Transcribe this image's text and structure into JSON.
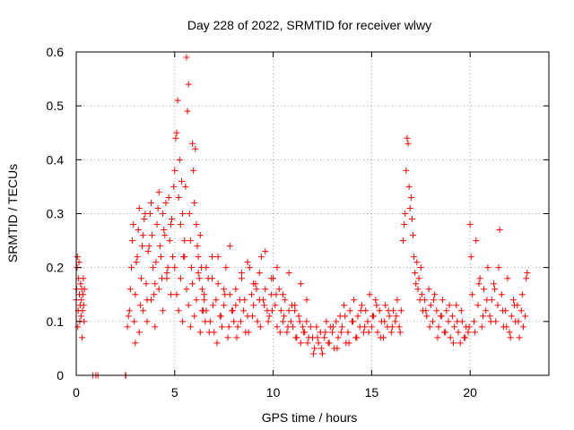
{
  "chart_data": {
    "type": "scatter",
    "title": "Day 228 of 2022, SRMTID for receiver wlwy",
    "xlabel": "GPS time / hours",
    "ylabel": "SRMTID / TECUs",
    "xlim": [
      0,
      24
    ],
    "ylim": [
      0,
      0.6
    ],
    "xticks": [
      0,
      5,
      10,
      15,
      20
    ],
    "xtick_labels": [
      "0",
      "5",
      "10",
      "15",
      "20"
    ],
    "yticks": [
      0,
      0.1,
      0.2,
      0.3,
      0.4,
      0.5,
      0.6
    ],
    "ytick_labels": [
      "0",
      "0.1",
      "0.2",
      "0.3",
      "0.4",
      "0.5",
      "0.6"
    ],
    "grid": true,
    "marker": "+",
    "color": "#ff0000",
    "series": [
      {
        "name": "SRMTID",
        "x": [
          0.0,
          0.02,
          0.04,
          0.06,
          0.08,
          0.1,
          0.12,
          0.14,
          0.16,
          0.18,
          0.2,
          0.22,
          0.24,
          0.26,
          0.28,
          0.3,
          0.32,
          0.34,
          0.36,
          0.38,
          0.4,
          0.42,
          0.85,
          1.0,
          1.1,
          2.5,
          2.52,
          2.6,
          2.7,
          2.8,
          2.9,
          3.0,
          3.1,
          3.2,
          3.3,
          3.4,
          3.5,
          3.6,
          3.7,
          3.8,
          3.9,
          4.0,
          4.1,
          4.2,
          4.3,
          4.4,
          4.5,
          4.6,
          4.7,
          4.8,
          4.9,
          2.65,
          2.75,
          2.85,
          2.95,
          3.05,
          3.15,
          3.25,
          3.35,
          3.45,
          3.55,
          3.65,
          3.75,
          3.85,
          3.95,
          4.05,
          4.15,
          4.25,
          4.35,
          4.45,
          4.55,
          4.65,
          4.75,
          4.85,
          4.95,
          3.0,
          3.2,
          3.4,
          3.6,
          3.8,
          4.0,
          4.2,
          4.4,
          4.6,
          4.8,
          5.0,
          5.05,
          5.1,
          5.15,
          5.2,
          5.25,
          5.3,
          5.35,
          5.4,
          5.45,
          5.5,
          5.55,
          5.6,
          5.65,
          5.7,
          5.75,
          5.8,
          5.85,
          5.9,
          5.95,
          6.0,
          6.05,
          6.1,
          6.15,
          6.2,
          6.25,
          6.3,
          6.35,
          6.4,
          6.45,
          6.5,
          5.0,
          5.1,
          5.2,
          5.3,
          5.4,
          5.5,
          5.6,
          5.7,
          5.8,
          5.9,
          6.0,
          6.1,
          6.2,
          6.3,
          6.4,
          6.5,
          6.6,
          6.7,
          6.8,
          6.9,
          7.0,
          7.1,
          7.2,
          7.3,
          7.4,
          7.5,
          7.6,
          7.7,
          7.8,
          7.9,
          8.0,
          8.1,
          8.2,
          8.3,
          8.4,
          8.5,
          8.6,
          8.7,
          8.8,
          8.9,
          9.0,
          9.1,
          9.2,
          9.3,
          9.4,
          9.5,
          9.6,
          9.7,
          9.8,
          9.9,
          10.0,
          10.1,
          10.2,
          10.3,
          10.4,
          10.5,
          10.6,
          10.7,
          10.8,
          10.9,
          11.0,
          11.1,
          11.2,
          11.3,
          11.4,
          11.5,
          11.6,
          11.7,
          11.8,
          11.9,
          6.55,
          6.75,
          6.95,
          7.15,
          7.35,
          7.55,
          7.75,
          7.95,
          8.15,
          8.35,
          8.55,
          8.75,
          8.95,
          9.15,
          9.35,
          9.55,
          9.75,
          9.95,
          10.15,
          10.35,
          10.55,
          10.75,
          10.95,
          11.15,
          11.35,
          11.55,
          11.75,
          6.6,
          6.9,
          7.2,
          7.5,
          7.8,
          8.1,
          8.4,
          8.7,
          9.0,
          9.3,
          9.6,
          9.9,
          10.2,
          10.5,
          10.8,
          11.1,
          11.4,
          11.7,
          12.0,
          12.1,
          12.2,
          12.3,
          12.4,
          12.5,
          12.6,
          12.7,
          12.8,
          12.9,
          13.0,
          13.1,
          13.2,
          13.3,
          13.4,
          13.5,
          13.6,
          13.7,
          13.8,
          13.9,
          14.0,
          14.1,
          14.2,
          14.3,
          14.4,
          14.5,
          14.6,
          14.7,
          14.8,
          14.9,
          15.0,
          15.1,
          15.2,
          15.3,
          15.4,
          15.5,
          15.6,
          15.7,
          15.8,
          15.9,
          16.0,
          16.1,
          16.2,
          16.3,
          16.4,
          16.5,
          12.05,
          12.25,
          12.45,
          12.65,
          12.85,
          13.05,
          13.25,
          13.45,
          13.65,
          13.85,
          14.05,
          14.25,
          14.45,
          14.65,
          14.85,
          15.05,
          15.25,
          15.45,
          15.65,
          15.85,
          16.05,
          16.25,
          16.45,
          16.6,
          16.65,
          16.7,
          16.75,
          16.8,
          16.85,
          16.9,
          16.95,
          17.0,
          17.05,
          17.1,
          17.15,
          17.2,
          17.25,
          17.3,
          17.35,
          17.4,
          17.45,
          17.5,
          17.55,
          17.6,
          17.7,
          17.8,
          17.9,
          18.0,
          18.1,
          18.2,
          18.3,
          18.4,
          18.5,
          18.6,
          18.7,
          18.8,
          18.9,
          19.0,
          19.1,
          19.2,
          19.3,
          19.4,
          19.5,
          19.6,
          19.7,
          19.8,
          19.9,
          17.75,
          17.95,
          18.15,
          18.35,
          18.55,
          18.75,
          18.95,
          19.15,
          19.35,
          19.55,
          19.75,
          19.95,
          20.0,
          20.1,
          20.2,
          20.3,
          20.4,
          20.5,
          20.6,
          20.7,
          20.8,
          20.9,
          21.0,
          21.1,
          21.2,
          21.3,
          21.4,
          21.5,
          21.6,
          21.7,
          21.8,
          21.9,
          22.0,
          22.1,
          22.2,
          22.3,
          22.4,
          22.5,
          22.6,
          22.7,
          22.8,
          22.9,
          20.05,
          20.25,
          20.45,
          20.65,
          20.85,
          21.05,
          21.25,
          21.45,
          21.65,
          21.85,
          22.05,
          22.25,
          22.45,
          22.65,
          22.85
        ],
        "y": [
          0.14,
          0.16,
          0.2,
          0.22,
          0.09,
          0.12,
          0.18,
          0.21,
          0.15,
          0.1,
          0.13,
          0.17,
          0.11,
          0.14,
          0.16,
          0.07,
          0.12,
          0.15,
          0.18,
          0.13,
          0.1,
          0.16,
          0.0,
          0.0,
          0.0,
          0.0,
          0.0,
          0.09,
          0.12,
          0.2,
          0.28,
          0.15,
          0.22,
          0.31,
          0.18,
          0.26,
          0.3,
          0.14,
          0.24,
          0.32,
          0.2,
          0.17,
          0.28,
          0.34,
          0.22,
          0.3,
          0.26,
          0.19,
          0.33,
          0.28,
          0.22,
          0.11,
          0.16,
          0.25,
          0.1,
          0.21,
          0.27,
          0.13,
          0.24,
          0.29,
          0.17,
          0.23,
          0.3,
          0.26,
          0.15,
          0.21,
          0.31,
          0.24,
          0.18,
          0.27,
          0.32,
          0.2,
          0.25,
          0.29,
          0.35,
          0.06,
          0.08,
          0.12,
          0.1,
          0.14,
          0.09,
          0.16,
          0.12,
          0.18,
          0.15,
          0.38,
          0.44,
          0.45,
          0.51,
          0.33,
          0.4,
          0.28,
          0.36,
          0.3,
          0.22,
          0.25,
          0.35,
          0.59,
          0.49,
          0.54,
          0.3,
          0.25,
          0.2,
          0.43,
          0.38,
          0.32,
          0.42,
          0.28,
          0.24,
          0.22,
          0.18,
          0.26,
          0.2,
          0.16,
          0.12,
          0.14,
          0.2,
          0.15,
          0.12,
          0.18,
          0.1,
          0.22,
          0.16,
          0.13,
          0.09,
          0.17,
          0.11,
          0.14,
          0.19,
          0.08,
          0.12,
          0.15,
          0.12,
          0.18,
          0.1,
          0.22,
          0.08,
          0.14,
          0.17,
          0.11,
          0.09,
          0.13,
          0.2,
          0.07,
          0.15,
          0.12,
          0.1,
          0.16,
          0.09,
          0.14,
          0.18,
          0.12,
          0.08,
          0.11,
          0.2,
          0.15,
          0.13,
          0.17,
          0.1,
          0.19,
          0.22,
          0.14,
          0.16,
          0.12,
          0.11,
          0.15,
          0.18,
          0.13,
          0.09,
          0.16,
          0.12,
          0.1,
          0.14,
          0.08,
          0.12,
          0.1,
          0.09,
          0.13,
          0.07,
          0.11,
          0.06,
          0.09,
          0.08,
          0.1,
          0.07,
          0.09,
          0.1,
          0.08,
          0.13,
          0.06,
          0.11,
          0.15,
          0.09,
          0.12,
          0.07,
          0.1,
          0.14,
          0.08,
          0.11,
          0.16,
          0.09,
          0.13,
          0.1,
          0.12,
          0.15,
          0.08,
          0.11,
          0.09,
          0.13,
          0.07,
          0.1,
          0.08,
          0.06,
          0.2,
          0.18,
          0.22,
          0.16,
          0.24,
          0.13,
          0.19,
          0.21,
          0.17,
          0.14,
          0.23,
          0.18,
          0.2,
          0.15,
          0.19,
          0.12,
          0.17,
          0.14,
          0.07,
          0.05,
          0.09,
          0.06,
          0.08,
          0.04,
          0.07,
          0.1,
          0.06,
          0.09,
          0.08,
          0.05,
          0.1,
          0.07,
          0.11,
          0.09,
          0.13,
          0.06,
          0.08,
          0.12,
          0.1,
          0.14,
          0.07,
          0.11,
          0.09,
          0.13,
          0.08,
          0.12,
          0.1,
          0.15,
          0.09,
          0.11,
          0.14,
          0.08,
          0.12,
          0.1,
          0.07,
          0.13,
          0.09,
          0.11,
          0.08,
          0.12,
          0.1,
          0.14,
          0.09,
          0.12,
          0.04,
          0.07,
          0.05,
          0.08,
          0.06,
          0.09,
          0.05,
          0.08,
          0.11,
          0.06,
          0.1,
          0.07,
          0.12,
          0.09,
          0.08,
          0.11,
          0.13,
          0.07,
          0.1,
          0.12,
          0.09,
          0.11,
          0.08,
          0.25,
          0.28,
          0.3,
          0.38,
          0.44,
          0.43,
          0.35,
          0.31,
          0.33,
          0.29,
          0.26,
          0.22,
          0.19,
          0.17,
          0.21,
          0.16,
          0.18,
          0.14,
          0.2,
          0.15,
          0.12,
          0.14,
          0.11,
          0.16,
          0.13,
          0.1,
          0.15,
          0.12,
          0.09,
          0.11,
          0.14,
          0.08,
          0.12,
          0.1,
          0.07,
          0.11,
          0.09,
          0.13,
          0.08,
          0.06,
          0.1,
          0.07,
          0.09,
          0.08,
          0.12,
          0.09,
          0.14,
          0.07,
          0.11,
          0.08,
          0.13,
          0.06,
          0.1,
          0.12,
          0.07,
          0.09,
          0.28,
          0.15,
          0.1,
          0.25,
          0.13,
          0.18,
          0.09,
          0.16,
          0.12,
          0.2,
          0.11,
          0.14,
          0.17,
          0.1,
          0.13,
          0.27,
          0.15,
          0.09,
          0.12,
          0.18,
          0.08,
          0.11,
          0.14,
          0.1,
          0.13,
          0.07,
          0.12,
          0.09,
          0.11,
          0.19,
          0.22,
          0.08,
          0.17,
          0.11,
          0.14,
          0.1,
          0.16,
          0.2,
          0.12,
          0.09,
          0.07,
          0.13,
          0.1,
          0.15,
          0.18
        ]
      }
    ]
  }
}
